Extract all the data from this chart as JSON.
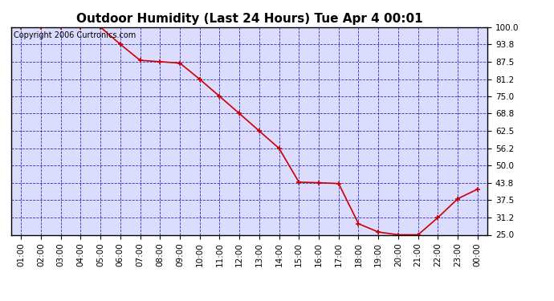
{
  "title": "Outdoor Humidity (Last 24 Hours) Tue Apr 4 00:01",
  "copyright": "Copyright 2006 Curtronics.com",
  "x_labels": [
    "01:00",
    "02:00",
    "03:00",
    "04:00",
    "05:00",
    "06:00",
    "07:00",
    "08:00",
    "09:00",
    "10:00",
    "11:00",
    "12:00",
    "13:00",
    "14:00",
    "15:00",
    "16:00",
    "17:00",
    "18:00",
    "19:00",
    "20:00",
    "21:00",
    "22:00",
    "23:00",
    "00:00"
  ],
  "x_values": [
    1,
    2,
    3,
    4,
    5,
    6,
    7,
    8,
    9,
    10,
    11,
    12,
    13,
    14,
    15,
    16,
    17,
    18,
    19,
    20,
    21,
    22,
    23,
    24
  ],
  "y_values": [
    100.0,
    100.0,
    100.0,
    100.0,
    100.0,
    93.8,
    88.0,
    87.5,
    87.0,
    81.2,
    75.0,
    68.8,
    62.5,
    56.2,
    44.0,
    43.8,
    43.5,
    29.0,
    26.0,
    25.0,
    25.0,
    31.2,
    38.0,
    41.5
  ],
  "yticks": [
    25.0,
    31.2,
    37.5,
    43.8,
    50.0,
    56.2,
    62.5,
    68.8,
    75.0,
    81.2,
    87.5,
    93.8,
    100.0
  ],
  "ylim": [
    25.0,
    100.0
  ],
  "line_color": "#cc0000",
  "marker_color": "#cc0000",
  "bg_color": "#ffffff",
  "plot_bg_color": "#dcdcff",
  "grid_color": "#0000bb",
  "title_color": "#000000",
  "copyright_color": "#000000",
  "axis_label_color": "#000000",
  "title_fontsize": 11,
  "copyright_fontsize": 7,
  "tick_fontsize": 7.5
}
